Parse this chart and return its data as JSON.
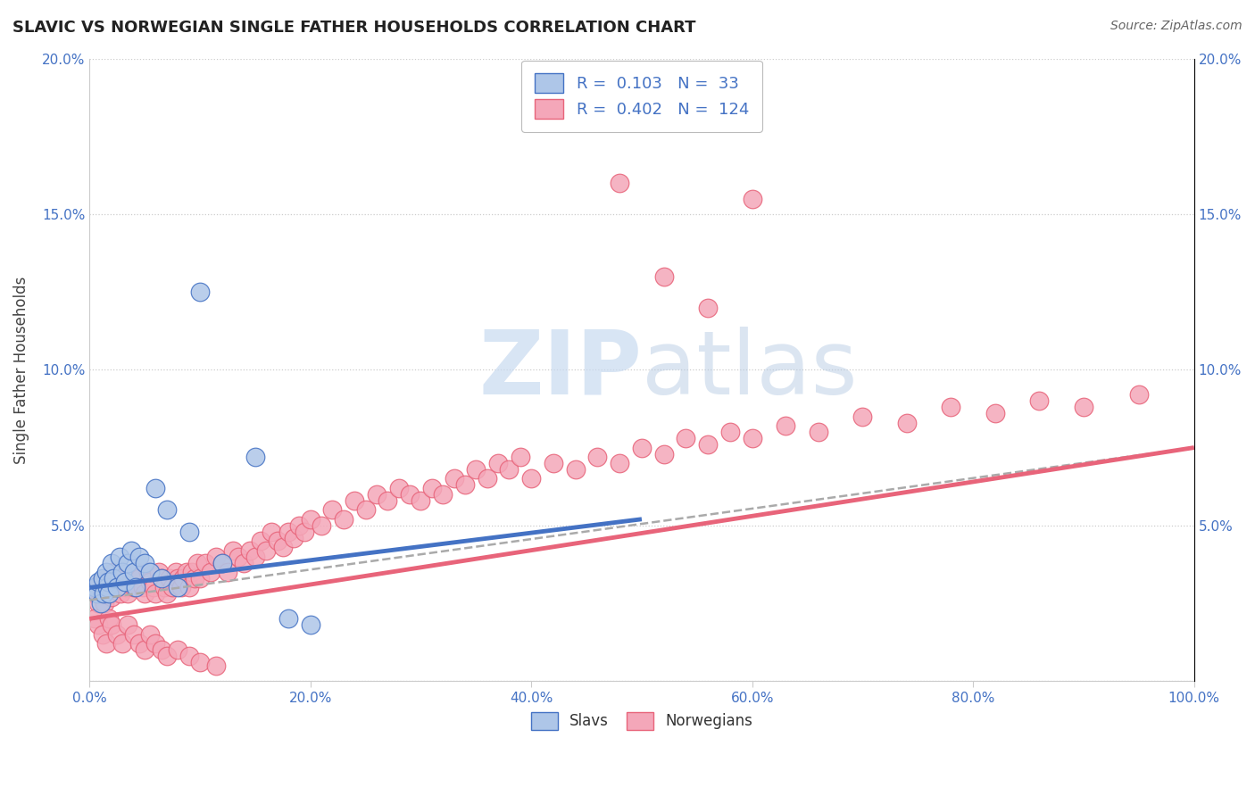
{
  "title": "SLAVIC VS NORWEGIAN SINGLE FATHER HOUSEHOLDS CORRELATION CHART",
  "source": "Source: ZipAtlas.com",
  "ylabel": "Single Father Households",
  "xlim": [
    0,
    1.0
  ],
  "ylim": [
    0,
    0.2
  ],
  "xticks": [
    0.0,
    0.2,
    0.4,
    0.6,
    0.8,
    1.0
  ],
  "yticks": [
    0.0,
    0.05,
    0.1,
    0.15,
    0.2
  ],
  "xticklabels": [
    "0.0%",
    "20.0%",
    "40.0%",
    "60.0%",
    "80.0%",
    "100.0%"
  ],
  "yticklabels": [
    "",
    "5.0%",
    "10.0%",
    "15.0%",
    "20.0%"
  ],
  "slavs_R": 0.103,
  "slavs_N": 33,
  "norwegians_R": 0.402,
  "norwegians_N": 124,
  "slav_color": "#aec6e8",
  "norwegian_color": "#f4a7b9",
  "slav_line_color": "#4472c4",
  "norwegian_line_color": "#e8647a",
  "background_color": "#ffffff",
  "grid_color": "#cccccc",
  "watermark_color": "#c8daf0",
  "tick_color": "#4472c4",
  "title_color": "#222222",
  "source_color": "#666666",
  "ylabel_color": "#444444",
  "legend_label_color": "#4472c4",
  "bottom_legend_color": "#333333",
  "slavs_x": [
    0.005,
    0.007,
    0.008,
    0.01,
    0.012,
    0.013,
    0.015,
    0.016,
    0.017,
    0.018,
    0.02,
    0.022,
    0.025,
    0.027,
    0.03,
    0.032,
    0.035,
    0.038,
    0.04,
    0.042,
    0.045,
    0.05,
    0.055,
    0.06,
    0.065,
    0.07,
    0.08,
    0.09,
    0.1,
    0.12,
    0.15,
    0.18,
    0.2
  ],
  "slavs_y": [
    0.03,
    0.028,
    0.032,
    0.025,
    0.033,
    0.028,
    0.035,
    0.03,
    0.032,
    0.028,
    0.038,
    0.033,
    0.03,
    0.04,
    0.035,
    0.032,
    0.038,
    0.042,
    0.035,
    0.03,
    0.04,
    0.038,
    0.035,
    0.062,
    0.033,
    0.055,
    0.03,
    0.048,
    0.125,
    0.038,
    0.072,
    0.02,
    0.018
  ],
  "norwegians_x": [
    0.004,
    0.006,
    0.008,
    0.01,
    0.012,
    0.014,
    0.016,
    0.018,
    0.02,
    0.022,
    0.025,
    0.028,
    0.03,
    0.033,
    0.035,
    0.038,
    0.04,
    0.042,
    0.045,
    0.048,
    0.05,
    0.053,
    0.055,
    0.058,
    0.06,
    0.063,
    0.065,
    0.068,
    0.07,
    0.073,
    0.075,
    0.078,
    0.08,
    0.083,
    0.085,
    0.088,
    0.09,
    0.093,
    0.095,
    0.098,
    0.1,
    0.105,
    0.11,
    0.115,
    0.12,
    0.125,
    0.13,
    0.135,
    0.14,
    0.145,
    0.15,
    0.155,
    0.16,
    0.165,
    0.17,
    0.175,
    0.18,
    0.185,
    0.19,
    0.195,
    0.2,
    0.21,
    0.22,
    0.23,
    0.24,
    0.25,
    0.26,
    0.27,
    0.28,
    0.29,
    0.3,
    0.31,
    0.32,
    0.33,
    0.34,
    0.35,
    0.36,
    0.37,
    0.38,
    0.39,
    0.4,
    0.42,
    0.44,
    0.46,
    0.48,
    0.5,
    0.52,
    0.54,
    0.56,
    0.58,
    0.6,
    0.63,
    0.66,
    0.7,
    0.74,
    0.78,
    0.82,
    0.86,
    0.9,
    0.95,
    0.48,
    0.52,
    0.56,
    0.6,
    0.005,
    0.008,
    0.012,
    0.015,
    0.018,
    0.02,
    0.025,
    0.03,
    0.035,
    0.04,
    0.045,
    0.05,
    0.055,
    0.06,
    0.065,
    0.07,
    0.08,
    0.09,
    0.1,
    0.115
  ],
  "norwegians_y": [
    0.028,
    0.03,
    0.025,
    0.032,
    0.028,
    0.025,
    0.033,
    0.03,
    0.027,
    0.035,
    0.03,
    0.028,
    0.033,
    0.03,
    0.028,
    0.032,
    0.03,
    0.035,
    0.033,
    0.03,
    0.028,
    0.035,
    0.032,
    0.03,
    0.028,
    0.035,
    0.033,
    0.03,
    0.028,
    0.033,
    0.03,
    0.035,
    0.033,
    0.03,
    0.033,
    0.035,
    0.03,
    0.035,
    0.033,
    0.038,
    0.033,
    0.038,
    0.035,
    0.04,
    0.038,
    0.035,
    0.042,
    0.04,
    0.038,
    0.042,
    0.04,
    0.045,
    0.042,
    0.048,
    0.045,
    0.043,
    0.048,
    0.046,
    0.05,
    0.048,
    0.052,
    0.05,
    0.055,
    0.052,
    0.058,
    0.055,
    0.06,
    0.058,
    0.062,
    0.06,
    0.058,
    0.062,
    0.06,
    0.065,
    0.063,
    0.068,
    0.065,
    0.07,
    0.068,
    0.072,
    0.065,
    0.07,
    0.068,
    0.072,
    0.07,
    0.075,
    0.073,
    0.078,
    0.076,
    0.08,
    0.078,
    0.082,
    0.08,
    0.085,
    0.083,
    0.088,
    0.086,
    0.09,
    0.088,
    0.092,
    0.16,
    0.13,
    0.12,
    0.155,
    0.02,
    0.018,
    0.015,
    0.012,
    0.02,
    0.018,
    0.015,
    0.012,
    0.018,
    0.015,
    0.012,
    0.01,
    0.015,
    0.012,
    0.01,
    0.008,
    0.01,
    0.008,
    0.006,
    0.005
  ],
  "slav_line_x": [
    0.0,
    0.5
  ],
  "slav_line_y": [
    0.03,
    0.052
  ],
  "norw_line_x": [
    0.0,
    1.0
  ],
  "norw_line_y": [
    0.02,
    0.075
  ],
  "dash_line_x": [
    0.0,
    1.0
  ],
  "dash_line_y": [
    0.026,
    0.075
  ]
}
